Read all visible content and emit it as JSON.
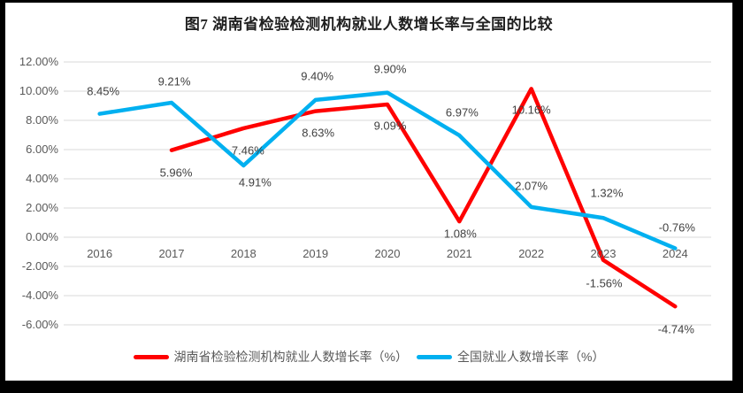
{
  "title": "图7 湖南省检验检测机构就业人数增长率与全国的比较",
  "frame": {
    "background_color": "#000000",
    "canvas_color": "#ffffff"
  },
  "chart_data": {
    "type": "line",
    "title": "图7 湖南省检验检测机构就业人数增长率与全国的比较",
    "categories": [
      "2016",
      "2017",
      "2018",
      "2019",
      "2020",
      "2021",
      "2022",
      "2023",
      "2024"
    ],
    "series": [
      {
        "name": "湖南省检验检测机构就业人数增长率（%）",
        "color": "#FF0000",
        "values": [
          null,
          5.96,
          7.46,
          8.63,
          9.09,
          1.08,
          10.16,
          -1.56,
          -4.74
        ],
        "data_labels": [
          "",
          "5.96%",
          "7.46%",
          "8.63%",
          "9.09%",
          "1.08%",
          "10.16%",
          "-1.56%",
          "-4.74%"
        ],
        "label_offsets": [
          null,
          [
            5,
            25
          ],
          [
            5,
            25
          ],
          [
            3,
            24
          ],
          [
            3,
            24
          ],
          [
            1,
            14
          ],
          [
            0,
            24
          ],
          [
            1,
            26
          ],
          [
            1,
            26
          ]
        ]
      },
      {
        "name": "全国就业人数增长率（%）",
        "color": "#00B0F0",
        "values": [
          8.45,
          9.21,
          4.91,
          9.4,
          9.9,
          6.97,
          2.07,
          1.32,
          -0.76
        ],
        "data_labels": [
          "8.45%",
          "9.21%",
          "4.91%",
          "9.40%",
          "9.90%",
          "6.97%",
          "2.07%",
          "1.32%",
          "-0.76%"
        ],
        "label_offsets": [
          [
            4,
            -26
          ],
          [
            3,
            -24
          ],
          [
            13,
            19
          ],
          [
            2,
            -27
          ],
          [
            3,
            -27
          ],
          [
            3,
            -26
          ],
          [
            0,
            -24
          ],
          [
            4,
            -28
          ],
          [
            2,
            -24
          ]
        ]
      }
    ],
    "y_axis": {
      "min": -6,
      "max": 12,
      "step": 2,
      "tick_labels": [
        "12.00%",
        "10.00%",
        "8.00%",
        "6.00%",
        "4.00%",
        "2.00%",
        "0.00%",
        "-2.00%",
        "-4.00%",
        "-6.00%"
      ]
    },
    "x_axis": {
      "tick_labels": [
        "2016",
        "2017",
        "2018",
        "2019",
        "2020",
        "2021",
        "2022",
        "2023",
        "2024"
      ]
    },
    "grid": true,
    "gridline_color": "#D9D9D9",
    "axis_text_color": "#595959",
    "data_label_color": "#404040",
    "legend_position": "bottom"
  }
}
